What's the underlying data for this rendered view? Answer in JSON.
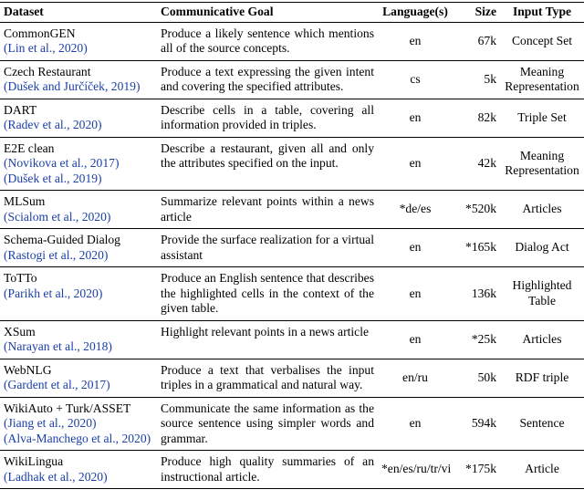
{
  "table": {
    "header": [
      "Dataset",
      "Communicative Goal",
      "Language(s)",
      "Size",
      "Input Type"
    ],
    "rows": [
      {
        "dataset": "CommonGEN",
        "citations": [
          "(Lin et al., 2020)"
        ],
        "goal": "Produce a likely sentence which mentions all of the source concepts.",
        "language": "en",
        "size": "67k",
        "input_type": "Concept Set"
      },
      {
        "dataset": "Czech Restaurant",
        "citations": [
          "(Dušek and Jurčíček, 2019)"
        ],
        "goal": "Produce a text expressing the given intent and covering the specified attributes.",
        "language": "cs",
        "size": "5k",
        "input_type": "Meaning Representation"
      },
      {
        "dataset": "DART",
        "citations": [
          "(Radev et al., 2020)"
        ],
        "goal": "Describe cells in a table, covering all information provided in triples.",
        "language": "en",
        "size": "82k",
        "input_type": "Triple Set"
      },
      {
        "dataset": "E2E clean",
        "citations": [
          "(Novikova et al., 2017)",
          "(Dušek et al., 2019)"
        ],
        "goal": "Describe a restaurant, given all and only the attributes specified on the input.",
        "language": "en",
        "size": "42k",
        "input_type": "Meaning Representation"
      },
      {
        "dataset": "MLSum",
        "citations": [
          "(Scialom et al., 2020)"
        ],
        "goal": "Summarize relevant points within a news article",
        "language": "*de/es",
        "size": "*520k",
        "input_type": "Articles"
      },
      {
        "dataset": "Schema-Guided Dialog",
        "citations": [
          "(Rastogi et al., 2020)"
        ],
        "goal": "Provide the surface realization for a virtual assistant",
        "language": "en",
        "size": "*165k",
        "input_type": "Dialog Act"
      },
      {
        "dataset": "ToTTo",
        "citations": [
          "(Parikh et al., 2020)"
        ],
        "goal": "Produce an English sentence that describes the highlighted cells in the context of the given table.",
        "language": "en",
        "size": "136k",
        "input_type": "Highlighted Table"
      },
      {
        "dataset": "XSum",
        "citations": [
          "(Narayan et al., 2018)"
        ],
        "goal": "Highlight relevant points in a news article",
        "language": "en",
        "size": "*25k",
        "input_type": "Articles"
      },
      {
        "dataset": "WebNLG",
        "citations": [
          "(Gardent et al., 2017)"
        ],
        "goal": "Produce a text that verbalises the input triples in a grammatical and natural way.",
        "language": "en/ru",
        "size": "50k",
        "input_type": "RDF triple"
      },
      {
        "dataset": "WikiAuto + Turk/ASSET",
        "citations": [
          "(Jiang et al., 2020)",
          "(Alva-Manchego et al., 2020)"
        ],
        "goal": "Communicate the same information as the source sentence using simpler words and grammar.",
        "language": "en",
        "size": "594k",
        "input_type": "Sentence"
      },
      {
        "dataset": "WikiLingua",
        "citations": [
          "(Ladhak et al., 2020)"
        ],
        "goal": "Produce high quality summaries of an instructional article.",
        "language": "*en/es/ru/tr/vi",
        "size": "*175k",
        "input_type": "Article"
      }
    ]
  }
}
